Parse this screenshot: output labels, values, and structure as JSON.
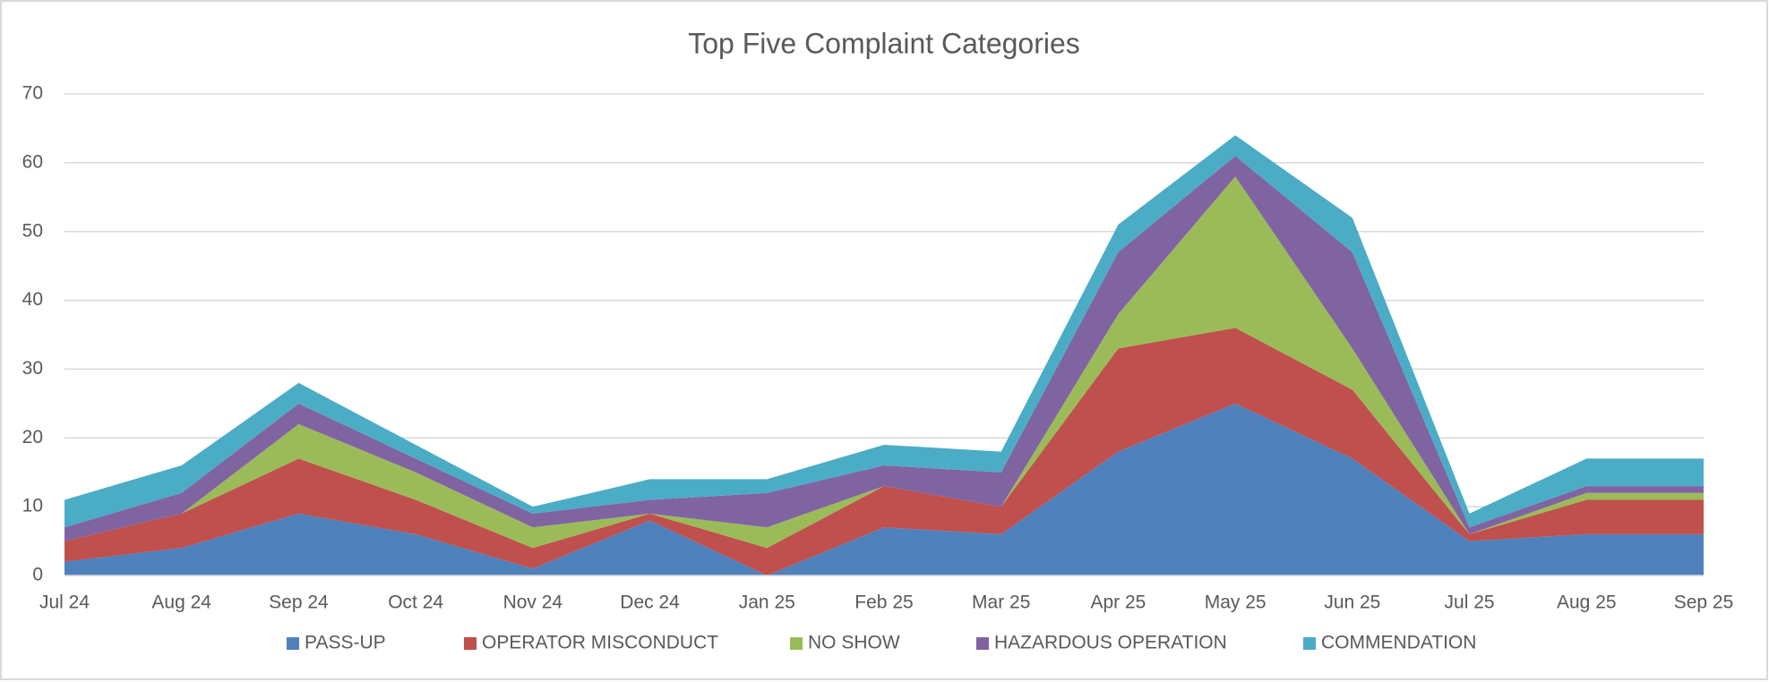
{
  "chart_data": {
    "type": "stacked_area",
    "title": "Top Five Complaint Categories",
    "categories": [
      "Jul 24",
      "Aug 24",
      "Sep 24",
      "Oct 24",
      "Nov 24",
      "Dec 24",
      "Jan 25",
      "Feb 25",
      "Mar 25",
      "Apr 25",
      "May 25",
      "Jun 25",
      "Jul 25",
      "Aug 25",
      "Sep 25"
    ],
    "series": [
      {
        "name": "PASS-UP",
        "color": "#4f81bd",
        "values": [
          2,
          4,
          9,
          6,
          1,
          8,
          0,
          7,
          6,
          18,
          25,
          17,
          5,
          6,
          6
        ]
      },
      {
        "name": "OPERATOR MISCONDUCT",
        "color": "#c0504d",
        "values": [
          3,
          5,
          8,
          5,
          3,
          1,
          4,
          6,
          4,
          15,
          11,
          10,
          1,
          5,
          5
        ]
      },
      {
        "name": "NO SHOW",
        "color": "#9bbb59",
        "values": [
          0,
          0,
          5,
          4,
          3,
          0,
          3,
          0,
          0,
          5,
          22,
          6,
          0,
          1,
          1
        ]
      },
      {
        "name": "HAZARDOUS OPERATION",
        "color": "#8064a2",
        "values": [
          2,
          3,
          3,
          2,
          2,
          2,
          5,
          3,
          5,
          9,
          3,
          14,
          1,
          1,
          1
        ]
      },
      {
        "name": "COMMENDATION",
        "color": "#4bacc6",
        "values": [
          4,
          4,
          3,
          2,
          1,
          3,
          2,
          3,
          3,
          4,
          3,
          5,
          2,
          4,
          4
        ]
      }
    ],
    "ylim": [
      0,
      70
    ],
    "yticks": [
      0,
      10,
      20,
      30,
      40,
      50,
      60,
      70
    ],
    "grid": true,
    "legend": "bottom"
  }
}
